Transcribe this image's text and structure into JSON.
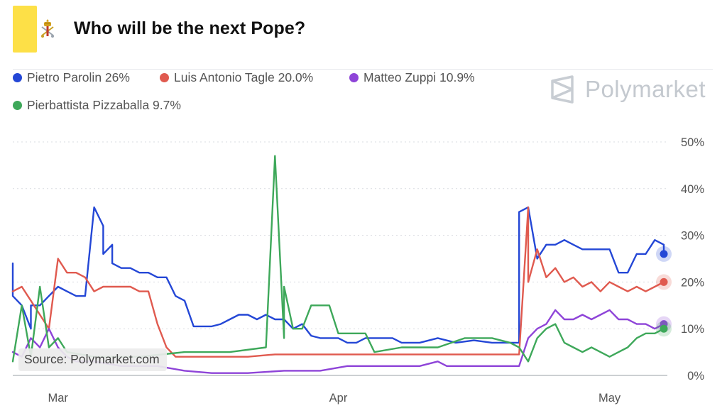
{
  "header": {
    "title": "Who will be the next Pope?"
  },
  "brand": {
    "name": "Polymarket"
  },
  "source": "Source: Polymarket.com",
  "colors": {
    "accent_bar": "#fde047",
    "grid": "#d9dce0",
    "axis_text": "#555555"
  },
  "chart_data": {
    "type": "line",
    "title": "Who will be the next Pope?",
    "xlabel": "",
    "ylabel": "",
    "x_tick_labels": [
      "Mar",
      "Apr",
      "May"
    ],
    "y_ticks": [
      "0%",
      "10%",
      "20%",
      "30%",
      "40%",
      "50%"
    ],
    "ylim": [
      0,
      50
    ],
    "xlim": [
      "2025-02-24",
      "2025-05-07"
    ],
    "grid": true,
    "legend_position": "top-left",
    "series": [
      {
        "name": "Pietro Parolin 26%",
        "color": "#2447d6",
        "points": [
          [
            "2025-02-24",
            24
          ],
          [
            "2025-02-24",
            17
          ],
          [
            "2025-02-25",
            15
          ],
          [
            "2025-02-26",
            10
          ],
          [
            "2025-02-26",
            15
          ],
          [
            "2025-02-27",
            15
          ],
          [
            "2025-02-28",
            17
          ],
          [
            "2025-03-01",
            19
          ],
          [
            "2025-03-02",
            18
          ],
          [
            "2025-03-03",
            17
          ],
          [
            "2025-03-04",
            17
          ],
          [
            "2025-03-05",
            36
          ],
          [
            "2025-03-06",
            32
          ],
          [
            "2025-03-06",
            26
          ],
          [
            "2025-03-07",
            28
          ],
          [
            "2025-03-07",
            24
          ],
          [
            "2025-03-08",
            23
          ],
          [
            "2025-03-09",
            23
          ],
          [
            "2025-03-10",
            22
          ],
          [
            "2025-03-11",
            22
          ],
          [
            "2025-03-12",
            21
          ],
          [
            "2025-03-13",
            21
          ],
          [
            "2025-03-14",
            17
          ],
          [
            "2025-03-15",
            16
          ],
          [
            "2025-03-16",
            10.5
          ],
          [
            "2025-03-17",
            10.5
          ],
          [
            "2025-03-18",
            10.5
          ],
          [
            "2025-03-19",
            11
          ],
          [
            "2025-03-20",
            12
          ],
          [
            "2025-03-21",
            13
          ],
          [
            "2025-03-22",
            13
          ],
          [
            "2025-03-23",
            12
          ],
          [
            "2025-03-24",
            13
          ],
          [
            "2025-03-25",
            12
          ],
          [
            "2025-03-26",
            12
          ],
          [
            "2025-03-27",
            10
          ],
          [
            "2025-03-28",
            11
          ],
          [
            "2025-03-29",
            8.5
          ],
          [
            "2025-03-30",
            8
          ],
          [
            "2025-03-31",
            8
          ],
          [
            "2025-04-01",
            8
          ],
          [
            "2025-04-02",
            7
          ],
          [
            "2025-04-03",
            7
          ],
          [
            "2025-04-04",
            8
          ],
          [
            "2025-04-05",
            8
          ],
          [
            "2025-04-06",
            8
          ],
          [
            "2025-04-07",
            8
          ],
          [
            "2025-04-08",
            7
          ],
          [
            "2025-04-10",
            7
          ],
          [
            "2025-04-12",
            8
          ],
          [
            "2025-04-14",
            7
          ],
          [
            "2025-04-16",
            7.5
          ],
          [
            "2025-04-18",
            7
          ],
          [
            "2025-04-20",
            7
          ],
          [
            "2025-04-21",
            7
          ],
          [
            "2025-04-21",
            35
          ],
          [
            "2025-04-22",
            36
          ],
          [
            "2025-04-23",
            25
          ],
          [
            "2025-04-24",
            28
          ],
          [
            "2025-04-25",
            28
          ],
          [
            "2025-04-26",
            29
          ],
          [
            "2025-04-27",
            28
          ],
          [
            "2025-04-28",
            27
          ],
          [
            "2025-04-29",
            27
          ],
          [
            "2025-04-30",
            27
          ],
          [
            "2025-05-01",
            27
          ],
          [
            "2025-05-02",
            22
          ],
          [
            "2025-05-03",
            22
          ],
          [
            "2025-05-04",
            26
          ],
          [
            "2025-05-05",
            26
          ],
          [
            "2025-05-06",
            29
          ],
          [
            "2025-05-07",
            28
          ],
          [
            "2025-05-07",
            26
          ]
        ]
      },
      {
        "name": "Luis Antonio Tagle 20.0%",
        "color": "#e05a4f",
        "points": [
          [
            "2025-02-24",
            18
          ],
          [
            "2025-02-25",
            19
          ],
          [
            "2025-02-26",
            16
          ],
          [
            "2025-02-27",
            13
          ],
          [
            "2025-02-28",
            10
          ],
          [
            "2025-03-01",
            25
          ],
          [
            "2025-03-02",
            22
          ],
          [
            "2025-03-03",
            22
          ],
          [
            "2025-03-04",
            21
          ],
          [
            "2025-03-05",
            18
          ],
          [
            "2025-03-06",
            19
          ],
          [
            "2025-03-07",
            19
          ],
          [
            "2025-03-08",
            19
          ],
          [
            "2025-03-09",
            19
          ],
          [
            "2025-03-10",
            18
          ],
          [
            "2025-03-11",
            18
          ],
          [
            "2025-03-12",
            11
          ],
          [
            "2025-03-13",
            6
          ],
          [
            "2025-03-14",
            4
          ],
          [
            "2025-03-15",
            4
          ],
          [
            "2025-03-18",
            4
          ],
          [
            "2025-03-20",
            4
          ],
          [
            "2025-03-22",
            4
          ],
          [
            "2025-03-25",
            4.5
          ],
          [
            "2025-03-28",
            4.5
          ],
          [
            "2025-04-01",
            4.5
          ],
          [
            "2025-04-05",
            4.5
          ],
          [
            "2025-04-10",
            4.5
          ],
          [
            "2025-04-15",
            4.5
          ],
          [
            "2025-04-20",
            4.5
          ],
          [
            "2025-04-21",
            4.5
          ],
          [
            "2025-04-22",
            36
          ],
          [
            "2025-04-22",
            20
          ],
          [
            "2025-04-23",
            27
          ],
          [
            "2025-04-24",
            21
          ],
          [
            "2025-04-25",
            23
          ],
          [
            "2025-04-26",
            20
          ],
          [
            "2025-04-27",
            21
          ],
          [
            "2025-04-28",
            19
          ],
          [
            "2025-04-29",
            20
          ],
          [
            "2025-04-30",
            18
          ],
          [
            "2025-05-01",
            20
          ],
          [
            "2025-05-02",
            19
          ],
          [
            "2025-05-03",
            18
          ],
          [
            "2025-05-04",
            19
          ],
          [
            "2025-05-05",
            18
          ],
          [
            "2025-05-06",
            19
          ],
          [
            "2025-05-07",
            20
          ]
        ]
      },
      {
        "name": "Matteo Zuppi 10.9%",
        "color": "#8e44d8",
        "points": [
          [
            "2025-02-24",
            5
          ],
          [
            "2025-02-25",
            4
          ],
          [
            "2025-02-26",
            8
          ],
          [
            "2025-02-27",
            6
          ],
          [
            "2025-02-28",
            10
          ],
          [
            "2025-03-01",
            6
          ],
          [
            "2025-03-02",
            4
          ],
          [
            "2025-03-03",
            3
          ],
          [
            "2025-03-05",
            3
          ],
          [
            "2025-03-08",
            2
          ],
          [
            "2025-03-12",
            2
          ],
          [
            "2025-03-15",
            1
          ],
          [
            "2025-03-18",
            0.5
          ],
          [
            "2025-03-22",
            0.5
          ],
          [
            "2025-03-26",
            1
          ],
          [
            "2025-03-30",
            1
          ],
          [
            "2025-04-02",
            2
          ],
          [
            "2025-04-06",
            2
          ],
          [
            "2025-04-10",
            2
          ],
          [
            "2025-04-12",
            3
          ],
          [
            "2025-04-13",
            2
          ],
          [
            "2025-04-16",
            2
          ],
          [
            "2025-04-20",
            2
          ],
          [
            "2025-04-21",
            2
          ],
          [
            "2025-04-22",
            8
          ],
          [
            "2025-04-23",
            10
          ],
          [
            "2025-04-24",
            11
          ],
          [
            "2025-04-25",
            14
          ],
          [
            "2025-04-26",
            12
          ],
          [
            "2025-04-27",
            12
          ],
          [
            "2025-04-28",
            13
          ],
          [
            "2025-04-29",
            12
          ],
          [
            "2025-04-30",
            13
          ],
          [
            "2025-05-01",
            14
          ],
          [
            "2025-05-02",
            12
          ],
          [
            "2025-05-03",
            12
          ],
          [
            "2025-05-04",
            11
          ],
          [
            "2025-05-05",
            11
          ],
          [
            "2025-05-06",
            10
          ],
          [
            "2025-05-07",
            11
          ]
        ]
      },
      {
        "name": "Pierbattista Pizzaballa 9.7%",
        "color": "#3ea85a",
        "points": [
          [
            "2025-02-24",
            3
          ],
          [
            "2025-02-25",
            15
          ],
          [
            "2025-02-26",
            4
          ],
          [
            "2025-02-27",
            19
          ],
          [
            "2025-02-28",
            6
          ],
          [
            "2025-03-01",
            8
          ],
          [
            "2025-03-02",
            5
          ],
          [
            "2025-03-05",
            4
          ],
          [
            "2025-03-10",
            4
          ],
          [
            "2025-03-15",
            5
          ],
          [
            "2025-03-20",
            5
          ],
          [
            "2025-03-24",
            6
          ],
          [
            "2025-03-25",
            47
          ],
          [
            "2025-03-26",
            8
          ],
          [
            "2025-03-26",
            19
          ],
          [
            "2025-03-27",
            10
          ],
          [
            "2025-03-28",
            10
          ],
          [
            "2025-03-29",
            15
          ],
          [
            "2025-03-30",
            15
          ],
          [
            "2025-03-31",
            15
          ],
          [
            "2025-04-01",
            9
          ],
          [
            "2025-04-02",
            9
          ],
          [
            "2025-04-03",
            9
          ],
          [
            "2025-04-04",
            9
          ],
          [
            "2025-04-05",
            5
          ],
          [
            "2025-04-08",
            6
          ],
          [
            "2025-04-12",
            6
          ],
          [
            "2025-04-15",
            8
          ],
          [
            "2025-04-18",
            8
          ],
          [
            "2025-04-20",
            7
          ],
          [
            "2025-04-21",
            6
          ],
          [
            "2025-04-22",
            3
          ],
          [
            "2025-04-23",
            8
          ],
          [
            "2025-04-24",
            10
          ],
          [
            "2025-04-25",
            11
          ],
          [
            "2025-04-26",
            7
          ],
          [
            "2025-04-27",
            6
          ],
          [
            "2025-04-28",
            5
          ],
          [
            "2025-04-29",
            6
          ],
          [
            "2025-04-30",
            5
          ],
          [
            "2025-05-01",
            4
          ],
          [
            "2025-05-02",
            5
          ],
          [
            "2025-05-03",
            6
          ],
          [
            "2025-05-04",
            8
          ],
          [
            "2025-05-05",
            9
          ],
          [
            "2025-05-06",
            9
          ],
          [
            "2025-05-07",
            10
          ]
        ]
      }
    ]
  }
}
